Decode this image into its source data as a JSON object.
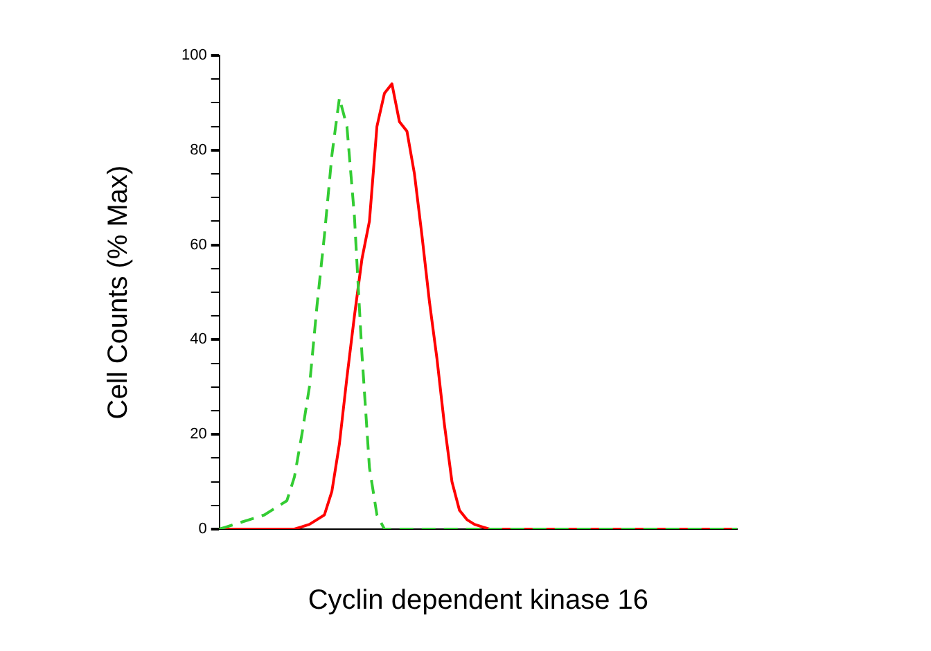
{
  "chart_data": {
    "type": "line",
    "xlabel": "Cyclin dependent kinase 16",
    "ylabel": "Cell Counts (% Max)",
    "categories": [
      null,
      null,
      null,
      null,
      null,
      null,
      null,
      null,
      null,
      null,
      null,
      null,
      null,
      null,
      null,
      null,
      null,
      null,
      null,
      null,
      null,
      null,
      null,
      null,
      null,
      null,
      null,
      null,
      null,
      null,
      null,
      null,
      null,
      null,
      null,
      null,
      null,
      null,
      null,
      null,
      null,
      null,
      null,
      null,
      null,
      null,
      null,
      null,
      null,
      null,
      null,
      null,
      null,
      null,
      null,
      null,
      null,
      null,
      null,
      null,
      null,
      null,
      null,
      null,
      null,
      null,
      null,
      null,
      null,
      null
    ],
    "series": [
      {
        "color": "#33cc33",
        "line_style": "dashed",
        "values": [
          0,
          0.5,
          1,
          1.5,
          2,
          2.5,
          3,
          4,
          5,
          6,
          11,
          20,
          30,
          47,
          62,
          79,
          91,
          85,
          66,
          37,
          13,
          3,
          0,
          0,
          0,
          0,
          0,
          0,
          0,
          0,
          0,
          0,
          0,
          0,
          0,
          0,
          0,
          0,
          0,
          0,
          0,
          0,
          0,
          0,
          0,
          0,
          0,
          0,
          0,
          0,
          0,
          0,
          0,
          0,
          0,
          0,
          0,
          0,
          0,
          0,
          0,
          0,
          0,
          0,
          0,
          0,
          0,
          0,
          0,
          0
        ]
      },
      {
        "color": "#ff0000",
        "line_style": "solid",
        "values": [
          0,
          0,
          0,
          0,
          0,
          0,
          0,
          0,
          0,
          0,
          0,
          0.5,
          1,
          2,
          3,
          8,
          18,
          32,
          45,
          57,
          65,
          85,
          92,
          94,
          86,
          84,
          75,
          62,
          48,
          36,
          22,
          10,
          4,
          2,
          1,
          0.5,
          0,
          0,
          0,
          0,
          0,
          0,
          0,
          0,
          0,
          0,
          0,
          0,
          0,
          0,
          0,
          0,
          0,
          0,
          0,
          0,
          0,
          0,
          0,
          0,
          0,
          0,
          0,
          0,
          0,
          0,
          0,
          0,
          0,
          0
        ]
      }
    ],
    "ylim": [
      0,
      100
    ],
    "yticks": [
      0,
      {
        "value": 5,
        "label": null
      },
      {
        "value": 10,
        "label": null
      },
      {
        "value": 15,
        "label": null
      },
      20,
      {
        "value": 25,
        "label": null
      },
      {
        "value": 30,
        "label": null
      },
      {
        "value": 35,
        "label": null
      },
      40,
      {
        "value": 45,
        "label": null
      },
      {
        "value": 50,
        "label": null
      },
      {
        "value": 55,
        "label": null
      },
      60,
      {
        "value": 65,
        "label": null
      },
      {
        "value": 70,
        "label": null
      },
      {
        "value": 75,
        "label": null
      },
      80,
      {
        "value": 85,
        "label": null
      },
      {
        "value": 90,
        "label": null
      },
      {
        "value": 95,
        "label": null
      },
      100
    ],
    "tick_labels": "y",
    "grid": false,
    "legend": false,
    "marker": "none"
  }
}
